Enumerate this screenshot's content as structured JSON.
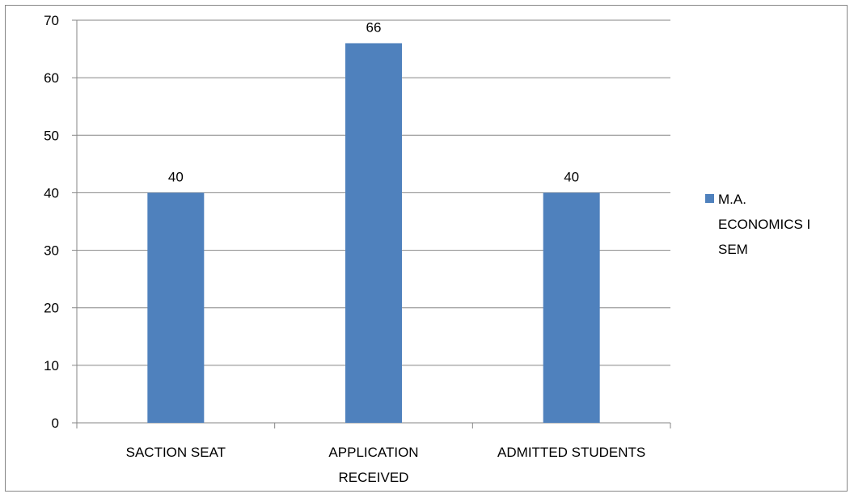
{
  "chart_data": {
    "type": "bar",
    "categories": [
      [
        "SACTION SEAT"
      ],
      [
        "APPLICATION",
        "RECEIVED"
      ],
      [
        "ADMITTED STUDENTS"
      ]
    ],
    "series": [
      {
        "name": "M.A. ECONOMICS I SEM",
        "name_lines": [
          "M.A.",
          "ECONOMICS I",
          "SEM"
        ],
        "values": [
          40,
          66,
          40
        ],
        "color": "#4F81BD"
      }
    ],
    "yticks": [
      0,
      10,
      20,
      30,
      40,
      50,
      60,
      70
    ],
    "ylim": [
      0,
      70
    ],
    "grid": true,
    "legend": "right",
    "data_labels": true,
    "gridline_color": "#868686"
  }
}
